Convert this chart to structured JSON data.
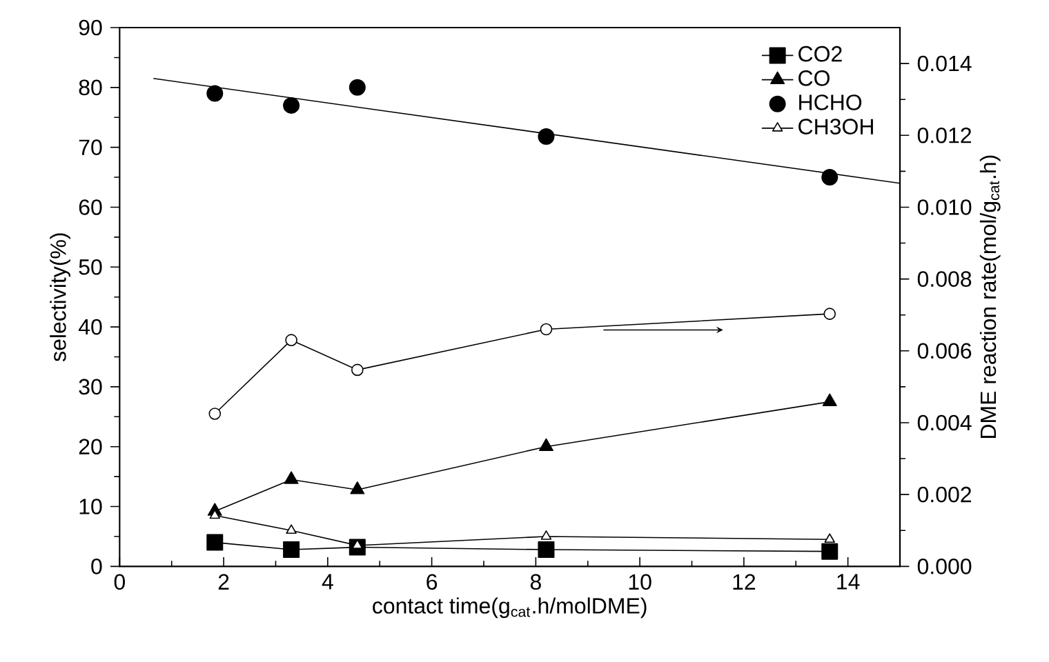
{
  "chart_data": {
    "type": "line",
    "xlabel": "contact time(g$_{cat}$.h/molDME)",
    "ylabel": "selectivity(%)",
    "y2label": "DME reaction rate(mol/g$_{cat}$.h)",
    "x": [
      1.83,
      3.3,
      4.57,
      8.2,
      13.65
    ],
    "xlim": [
      0,
      15
    ],
    "xticks": [
      0,
      2,
      4,
      6,
      8,
      10,
      12,
      14
    ],
    "ylim": [
      0,
      90
    ],
    "yticks": [
      0,
      10,
      20,
      30,
      40,
      50,
      60,
      70,
      80,
      90
    ],
    "y2lim": [
      0,
      0.015
    ],
    "y2ticks": [
      {
        "value": 0,
        "label": "0.000"
      },
      {
        "value": 0.002,
        "label": "0.002"
      },
      {
        "value": 0.004,
        "label": "0.004"
      },
      {
        "value": 0.006,
        "label": "0.006"
      },
      {
        "value": 0.008,
        "label": "0.008"
      },
      {
        "value": 0.01,
        "label": "0.010"
      },
      {
        "value": 0.012,
        "label": "0.012"
      },
      {
        "value": 0.014,
        "label": "0.014"
      }
    ],
    "legend": "top right",
    "series": [
      {
        "name": "CO2",
        "color": "#000000",
        "marker": "square",
        "values": [
          4,
          2.8,
          3.2,
          2.8,
          2.5
        ]
      },
      {
        "name": "CO",
        "color": "#000000",
        "marker": "triangle",
        "values": [
          9.2,
          14.5,
          12.8,
          20,
          27.5
        ]
      },
      {
        "name": "HCHO",
        "type": "scatter",
        "color": "#000000",
        "marker": "circle",
        "values": [
          79,
          77,
          80,
          71.8,
          65
        ]
      },
      {
        "name": "CH3OH",
        "color": "#ffffff",
        "marker": "triangle",
        "values": [
          8.5,
          6,
          3.5,
          5,
          4.5
        ]
      },
      {
        "type": "line",
        "color": "#000000",
        "marker": "none",
        "x": [
          0.65,
          15
        ],
        "values": [
          81.5,
          64
        ]
      },
      {
        "axis": "y2",
        "color": "#ffffff",
        "marker": "circle",
        "values": [
          0.00425,
          0.0063,
          0.00547,
          0.0066,
          0.00703
        ]
      }
    ]
  }
}
